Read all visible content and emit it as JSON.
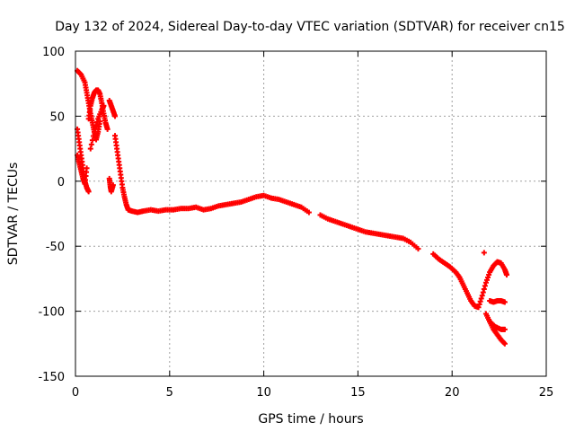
{
  "chart_data": {
    "type": "scatter",
    "title": "Day 132 of 2024, Sidereal Day-to-day VTEC variation (SDTVAR) for receiver cn15",
    "xlabel": "GPS time / hours",
    "ylabel": "SDTVAR / TECUs",
    "xlim": [
      0,
      25
    ],
    "ylim": [
      -150,
      100
    ],
    "xticks": [
      "0",
      "5",
      "10",
      "15",
      "20",
      "25"
    ],
    "yticks": [
      "100",
      "50",
      "0",
      "-50",
      "-100",
      "-150"
    ],
    "grid": true,
    "marker": "+",
    "color": "#ff0000",
    "series": [
      {
        "name": "main-trend",
        "points": [
          [
            0.1,
            40
          ],
          [
            0.2,
            30
          ],
          [
            0.3,
            20
          ],
          [
            0.4,
            10
          ],
          [
            0.5,
            0
          ],
          [
            0.6,
            -5
          ],
          [
            0.7,
            -8
          ],
          [
            0.1,
            20
          ],
          [
            0.2,
            14
          ],
          [
            0.3,
            8
          ],
          [
            0.4,
            2
          ],
          [
            0.5,
            -2
          ],
          [
            0.6,
            10
          ],
          [
            0.8,
            25
          ],
          [
            1.0,
            38
          ],
          [
            1.2,
            48
          ],
          [
            1.4,
            55
          ],
          [
            1.5,
            58
          ],
          [
            1.8,
            2
          ],
          [
            1.85,
            -4
          ],
          [
            1.9,
            -8
          ],
          [
            2.0,
            -3
          ],
          [
            2.1,
            35
          ],
          [
            2.2,
            25
          ],
          [
            2.3,
            15
          ],
          [
            2.4,
            5
          ],
          [
            2.5,
            -5
          ],
          [
            2.6,
            -12
          ],
          [
            2.7,
            -18
          ],
          [
            2.8,
            -22
          ],
          [
            3.0,
            -23
          ],
          [
            3.3,
            -24
          ],
          [
            3.6,
            -23
          ],
          [
            4.0,
            -22
          ],
          [
            4.4,
            -23
          ],
          [
            4.8,
            -22
          ],
          [
            5.2,
            -22
          ],
          [
            5.6,
            -21
          ],
          [
            6.0,
            -21
          ],
          [
            6.4,
            -20
          ],
          [
            6.8,
            -22
          ],
          [
            7.2,
            -21
          ],
          [
            7.6,
            -19
          ],
          [
            8.0,
            -18
          ],
          [
            8.4,
            -17
          ],
          [
            8.8,
            -16
          ],
          [
            9.2,
            -14
          ],
          [
            9.6,
            -12
          ],
          [
            10.0,
            -11
          ],
          [
            10.4,
            -13
          ],
          [
            10.8,
            -14
          ],
          [
            11.2,
            -16
          ],
          [
            11.6,
            -18
          ],
          [
            12.0,
            -20
          ],
          [
            12.4,
            -24
          ],
          [
            13.0,
            -26
          ],
          [
            13.4,
            -29
          ],
          [
            13.8,
            -31
          ],
          [
            14.2,
            -33
          ],
          [
            14.6,
            -35
          ],
          [
            15.0,
            -37
          ],
          [
            15.4,
            -39
          ],
          [
            15.8,
            -40
          ],
          [
            16.2,
            -41
          ],
          [
            16.6,
            -42
          ],
          [
            17.0,
            -43
          ],
          [
            17.4,
            -44
          ],
          [
            17.8,
            -47
          ],
          [
            18.2,
            -52
          ],
          [
            19.0,
            -56
          ],
          [
            19.3,
            -60
          ],
          [
            19.6,
            -63
          ],
          [
            19.9,
            -66
          ],
          [
            20.2,
            -70
          ],
          [
            20.4,
            -74
          ],
          [
            20.6,
            -80
          ],
          [
            20.8,
            -86
          ],
          [
            21.0,
            -92
          ],
          [
            21.2,
            -96
          ],
          [
            21.4,
            -97
          ],
          [
            21.6,
            -88
          ],
          [
            21.8,
            -78
          ],
          [
            22.0,
            -70
          ],
          [
            22.2,
            -65
          ],
          [
            22.4,
            -62
          ],
          [
            22.6,
            -63
          ],
          [
            22.8,
            -68
          ],
          [
            22.9,
            -72
          ],
          [
            21.7,
            -55
          ]
        ]
      },
      {
        "name": "upper-arcs",
        "points": [
          [
            0.1,
            85
          ],
          [
            0.3,
            82
          ],
          [
            0.5,
            76
          ],
          [
            0.6,
            68
          ],
          [
            0.7,
            60
          ],
          [
            0.8,
            52
          ],
          [
            0.9,
            45
          ],
          [
            1.0,
            38
          ],
          [
            1.1,
            32
          ],
          [
            1.2,
            38
          ],
          [
            1.3,
            46
          ],
          [
            0.7,
            48
          ],
          [
            0.8,
            58
          ],
          [
            0.9,
            64
          ],
          [
            1.0,
            68
          ],
          [
            1.1,
            70
          ],
          [
            1.2,
            70
          ],
          [
            1.3,
            67
          ],
          [
            1.4,
            60
          ],
          [
            1.5,
            52
          ],
          [
            1.6,
            45
          ],
          [
            1.7,
            40
          ],
          [
            1.8,
            62
          ],
          [
            1.9,
            58
          ],
          [
            2.0,
            54
          ],
          [
            2.1,
            50
          ]
        ]
      },
      {
        "name": "lower-tail",
        "points": [
          [
            22.0,
            -92
          ],
          [
            22.2,
            -93
          ],
          [
            22.4,
            -92
          ],
          [
            22.6,
            -92
          ],
          [
            22.8,
            -93
          ],
          [
            21.8,
            -102
          ],
          [
            22.0,
            -108
          ],
          [
            22.2,
            -114
          ],
          [
            22.4,
            -118
          ],
          [
            22.6,
            -122
          ],
          [
            22.8,
            -125
          ],
          [
            22.0,
            -108
          ],
          [
            22.3,
            -112
          ],
          [
            22.6,
            -114
          ],
          [
            22.8,
            -114
          ]
        ]
      }
    ]
  }
}
